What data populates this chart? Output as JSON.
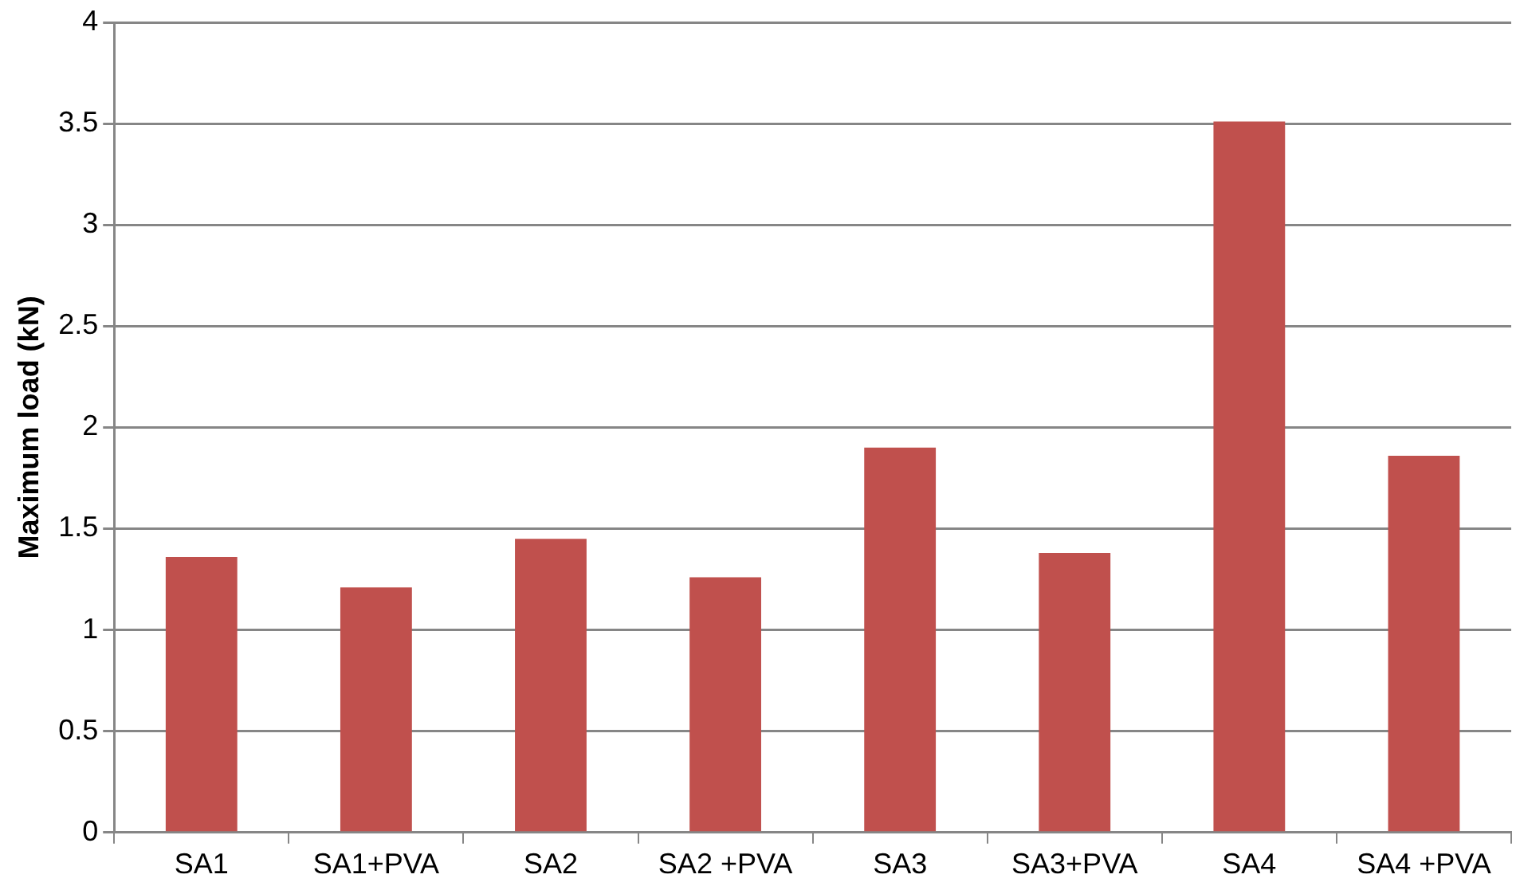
{
  "chart_data": {
    "type": "bar",
    "ylabel": "Maximum load (kN)",
    "categories": [
      "SA1",
      "SA1+PVA",
      "SA2",
      "SA2 +PVA",
      "SA3",
      "SA3+PVA",
      "SA4",
      "SA4 +PVA"
    ],
    "values": [
      1.36,
      1.21,
      1.45,
      1.26,
      1.9,
      1.38,
      3.51,
      1.86
    ],
    "color": "#c0504d",
    "ylim": [
      0,
      4
    ],
    "yticks": [
      0,
      0.5,
      1,
      1.5,
      2,
      2.5,
      3,
      3.5,
      4
    ],
    "grid": "y",
    "legend": false
  }
}
